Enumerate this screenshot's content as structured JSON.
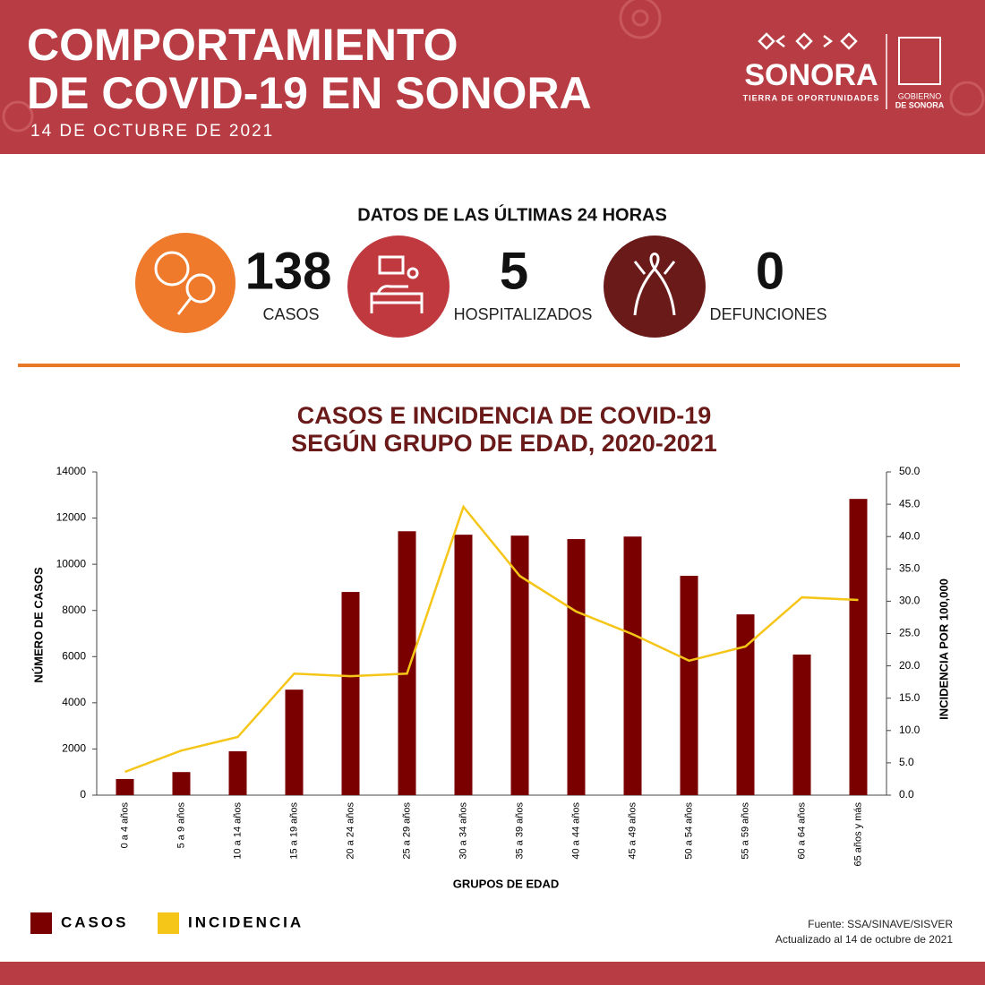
{
  "header": {
    "title": [
      "COMPORTAMIENTO",
      "DE COVID-19 EN SONORA"
    ],
    "date": "14 DE OCTUBRE DE 2021",
    "logo": {
      "brand": "SONORA",
      "tagline": "TIERRA DE OPORTUNIDADES",
      "government": [
        "GOBIERNO",
        "DE SONORA"
      ]
    }
  },
  "summary": {
    "heading": "DATOS DE LAS ÚLTIMAS 24 HORAS",
    "items": [
      {
        "value": "138",
        "label": "CASOS"
      },
      {
        "value": "5",
        "label": "HOSPITALIZADOS"
      },
      {
        "value": "0",
        "label": "DEFUNCIONES"
      }
    ]
  },
  "chart_data": {
    "type": "bar",
    "title": [
      "CASOS E INCIDENCIA DE COVID-19",
      "SEGÚN GRUPO DE EDAD, 2020-2021"
    ],
    "x_label": "GRUPOS DE EDAD",
    "y_label": "NÚMERO DE CASOS",
    "y2_label": "INCIDENCIA POR 100,000",
    "categories": [
      "0 a 4 años",
      "5 a 9 años",
      "10 a 14 años",
      "15 a 19 años",
      "20 a 24 años",
      "25 a 29 años",
      "30 a 34 años",
      "35 a 39 años",
      "40 a 44 años",
      "45 a 49 años",
      "50 a 54 años",
      "55 a 59 años",
      "60 a 64 años",
      "65 años y más"
    ],
    "series": [
      {
        "name": "CASOS",
        "type": "bar",
        "color": "#7a0000",
        "values": [
          700,
          1000,
          1900,
          4570,
          8800,
          11430,
          11280,
          11240,
          11090,
          11200,
          9500,
          7830,
          6090,
          12830
        ]
      },
      {
        "name": "INCIDENCIA",
        "type": "line",
        "axis": "y2",
        "color": "#f5c518",
        "values": [
          3.6,
          6.9,
          9.0,
          18.8,
          18.4,
          18.8,
          44.6,
          33.9,
          28.4,
          24.9,
          20.8,
          23.0,
          30.6,
          30.2
        ]
      }
    ],
    "ylim": [
      0,
      14000
    ],
    "yticks": [
      0,
      2000,
      4000,
      6000,
      8000,
      10000,
      12000,
      14000
    ],
    "y2lim": [
      0,
      50
    ],
    "y2ticks": [
      {
        "value": 0,
        "label": "0.0"
      },
      {
        "value": 5,
        "label": "5.0"
      },
      {
        "value": 10,
        "label": "10.0"
      },
      {
        "value": 15,
        "label": "15.0"
      },
      {
        "value": 20,
        "label": "20.0"
      },
      {
        "value": 25,
        "label": "25.0"
      },
      {
        "value": 30,
        "label": "30.0"
      },
      {
        "value": 35,
        "label": "35.0"
      },
      {
        "value": 40,
        "label": "40.0"
      },
      {
        "value": 45,
        "label": "45.0"
      },
      {
        "value": 50,
        "label": "50.0"
      }
    ],
    "grid": false,
    "legend": "bottom-left"
  },
  "footer": {
    "source": "Fuente: SSA/SINAVE/SISVER",
    "updated": "Actualizado al 14 de octubre de 2021"
  }
}
